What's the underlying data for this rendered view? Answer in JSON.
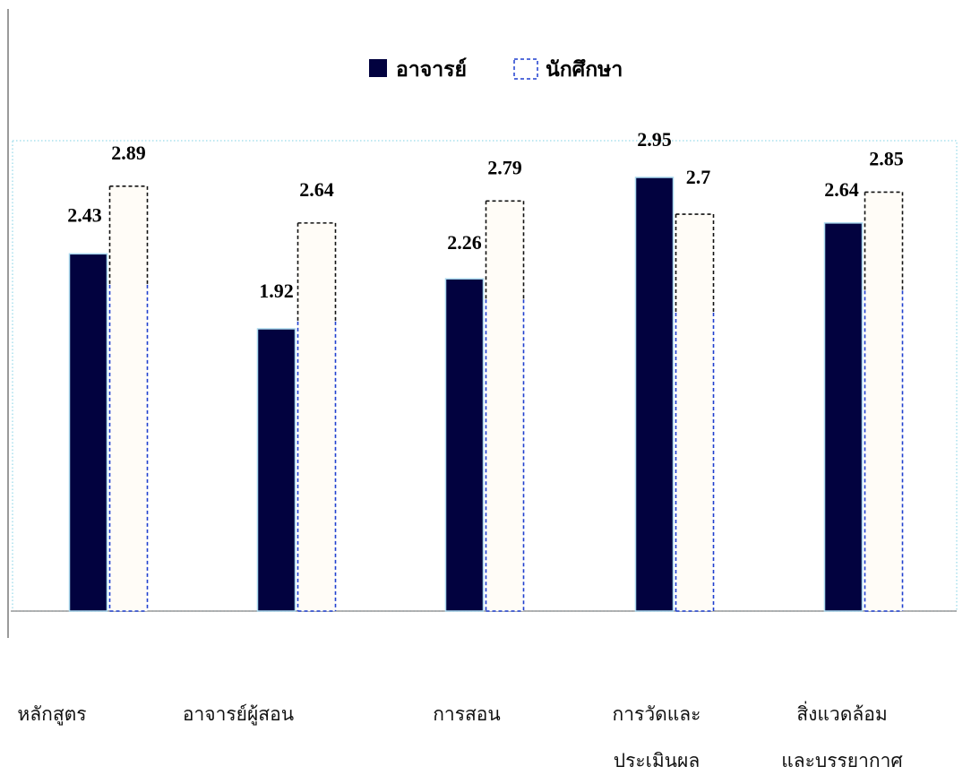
{
  "chart_data": {
    "type": "bar",
    "categories": [
      "หลักสูตร",
      "อาจารย์ผู้สอน",
      "การสอน",
      "การวัดและประเมินผล",
      "สิ่งแวดล้อมและบรรยากาศ"
    ],
    "category_lines": [
      [
        "หลักสูตร"
      ],
      [
        "อาจารย์ผู้สอน"
      ],
      [
        "การสอน"
      ],
      [
        "การวัดและ",
        "ประเมินผล"
      ],
      [
        "สิ่งแวดล้อม",
        "และบรรยากาศ"
      ]
    ],
    "series": [
      {
        "name": "อาจารย์",
        "values": [
          2.43,
          1.92,
          2.26,
          2.95,
          2.64
        ],
        "labels": [
          "2.43",
          "1.92",
          "2.26",
          "2.95",
          "2.64"
        ],
        "style": "solid"
      },
      {
        "name": "นักศึกษา",
        "values": [
          2.89,
          2.64,
          2.79,
          2.7,
          2.85
        ],
        "labels": [
          "2.89",
          "2.64",
          "2.79",
          "2.7",
          "2.85"
        ],
        "style": "dashed"
      }
    ],
    "ylim": [
      0,
      3.2
    ],
    "legend_position": "top-center",
    "grid": false,
    "title": "",
    "xlabel": "",
    "ylabel": ""
  },
  "colors": {
    "teacher_fill": "#02023f",
    "teacher_stroke": "#a9d8ee",
    "student_fill": "#fffcf7",
    "student_stroke": "#1f3fcf",
    "student_stroke_alt": "#111111",
    "axis": "#9a9a9a",
    "plot_border": "#a9e0ee"
  }
}
